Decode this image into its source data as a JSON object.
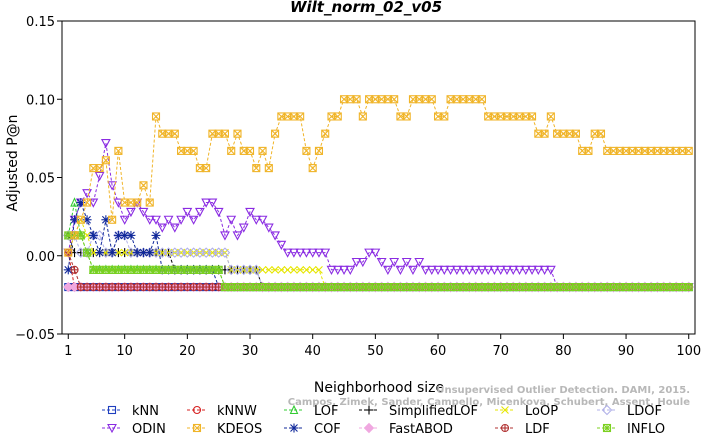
{
  "watermark": {
    "line1": "Unsupervised Outlier Detection. DAMI, 2015.",
    "line2": "Campos, Zimek, Sander, Campello, Micenkova, Schubert, Assent, Houle"
  },
  "chart_data": {
    "type": "line",
    "title": "Wilt_norm_02_v05",
    "xlabel": "Neighborhood size",
    "ylabel": "Adjusted P@n",
    "xlim": [
      0,
      101
    ],
    "ylim": [
      -0.05,
      0.15
    ],
    "xticks": [
      1,
      10,
      20,
      30,
      40,
      50,
      60,
      70,
      80,
      90,
      100
    ],
    "yticks": [
      -0.05,
      0.0,
      0.05,
      0.1,
      0.15
    ],
    "ytick_labels": [
      "−0.05",
      "0.00",
      "0.05",
      "0.10",
      "0.15"
    ],
    "grid": false,
    "legend_position": "bottom",
    "series": [
      {
        "name": "kNN",
        "color": "#1f3fbf",
        "marker": "square",
        "points": [
          [
            1,
            -0.02
          ],
          [
            100,
            -0.02
          ]
        ]
      },
      {
        "name": "kNNW",
        "color": "#d62020",
        "marker": "circle",
        "points": [
          [
            1,
            0.002
          ],
          [
            2,
            -0.02
          ],
          [
            100,
            -0.02
          ]
        ]
      },
      {
        "name": "LOF",
        "color": "#33cc33",
        "marker": "triangle",
        "points": [
          [
            1,
            0.013
          ],
          [
            2,
            0.034
          ],
          [
            3,
            0.013
          ],
          [
            4,
            0.002
          ],
          [
            5,
            -0.009
          ],
          [
            25,
            -0.009
          ],
          [
            26,
            -0.02
          ],
          [
            100,
            -0.02
          ]
        ]
      },
      {
        "name": "SimplifiedLOF",
        "color": "#000000",
        "marker": "plus",
        "points": [
          [
            1,
            0.013
          ],
          [
            2,
            0.002
          ],
          [
            17,
            0.002
          ],
          [
            18,
            -0.009
          ],
          [
            31,
            -0.009
          ],
          [
            32,
            -0.02
          ],
          [
            100,
            -0.02
          ]
        ]
      },
      {
        "name": "LoOP",
        "color": "#e6e600",
        "marker": "x",
        "points": [
          [
            1,
            0.002
          ],
          [
            2,
            0.013
          ],
          [
            3,
            0.023
          ],
          [
            4,
            0.013
          ],
          [
            5,
            0.002
          ],
          [
            26,
            0.002
          ],
          [
            27,
            -0.009
          ],
          [
            41,
            -0.009
          ],
          [
            42,
            -0.02
          ],
          [
            100,
            -0.02
          ]
        ]
      },
      {
        "name": "LDOF",
        "color": "#b0b0e8",
        "marker": "diamond",
        "points": [
          [
            1,
            0.013
          ],
          [
            3,
            0.002
          ],
          [
            5,
            0.013
          ],
          [
            7,
            0.002
          ],
          [
            9,
            0.013
          ],
          [
            11,
            0.002
          ],
          [
            15,
            0.002
          ],
          [
            17,
            0.002
          ],
          [
            26,
            0.002
          ],
          [
            27,
            -0.009
          ],
          [
            31,
            -0.009
          ],
          [
            32,
            -0.02
          ],
          [
            100,
            -0.02
          ]
        ]
      },
      {
        "name": "ODIN",
        "color": "#8a2be2",
        "marker": "triangle-down",
        "points": [
          [
            1,
            0.002
          ],
          [
            2,
            0.023
          ],
          [
            3,
            0.034
          ],
          [
            4,
            0.04
          ],
          [
            5,
            0.034
          ],
          [
            6,
            0.051
          ],
          [
            7,
            0.072
          ],
          [
            8,
            0.045
          ],
          [
            9,
            0.034
          ],
          [
            10,
            0.023
          ],
          [
            11,
            0.028
          ],
          [
            12,
            0.034
          ],
          [
            13,
            0.028
          ],
          [
            14,
            0.023
          ],
          [
            15,
            0.023
          ],
          [
            16,
            0.018
          ],
          [
            17,
            0.023
          ],
          [
            18,
            0.018
          ],
          [
            19,
            0.023
          ],
          [
            20,
            0.028
          ],
          [
            21,
            0.023
          ],
          [
            22,
            0.028
          ],
          [
            23,
            0.034
          ],
          [
            24,
            0.034
          ],
          [
            25,
            0.028
          ],
          [
            26,
            0.013
          ],
          [
            27,
            0.023
          ],
          [
            28,
            0.013
          ],
          [
            29,
            0.018
          ],
          [
            30,
            0.028
          ],
          [
            31,
            0.023
          ],
          [
            32,
            0.023
          ],
          [
            33,
            0.018
          ],
          [
            34,
            0.013
          ],
          [
            35,
            0.007
          ],
          [
            36,
            0.002
          ],
          [
            42,
            0.002
          ],
          [
            43,
            -0.009
          ],
          [
            46,
            -0.009
          ],
          [
            47,
            -0.004
          ],
          [
            48,
            -0.004
          ],
          [
            49,
            0.002
          ],
          [
            50,
            0.002
          ],
          [
            51,
            -0.004
          ],
          [
            52,
            -0.009
          ],
          [
            53,
            -0.004
          ],
          [
            54,
            -0.009
          ],
          [
            55,
            -0.004
          ],
          [
            56,
            -0.009
          ],
          [
            57,
            -0.004
          ],
          [
            58,
            -0.009
          ],
          [
            78,
            -0.009
          ],
          [
            79,
            -0.02
          ],
          [
            100,
            -0.02
          ]
        ]
      },
      {
        "name": "KDEOS",
        "color": "#f0b428",
        "marker": "square-x",
        "points": [
          [
            1,
            0.002
          ],
          [
            2,
            0.013
          ],
          [
            3,
            0.023
          ],
          [
            4,
            0.034
          ],
          [
            5,
            0.056
          ],
          [
            6,
            0.056
          ],
          [
            7,
            0.061
          ],
          [
            8,
            0.023
          ],
          [
            9,
            0.067
          ],
          [
            10,
            0.034
          ],
          [
            12,
            0.034
          ],
          [
            13,
            0.045
          ],
          [
            14,
            0.034
          ],
          [
            15,
            0.089
          ],
          [
            16,
            0.078
          ],
          [
            18,
            0.078
          ],
          [
            19,
            0.067
          ],
          [
            21,
            0.067
          ],
          [
            22,
            0.056
          ],
          [
            23,
            0.056
          ],
          [
            24,
            0.078
          ],
          [
            26,
            0.078
          ],
          [
            27,
            0.067
          ],
          [
            28,
            0.078
          ],
          [
            29,
            0.067
          ],
          [
            30,
            0.067
          ],
          [
            31,
            0.056
          ],
          [
            32,
            0.067
          ],
          [
            33,
            0.056
          ],
          [
            34,
            0.078
          ],
          [
            35,
            0.089
          ],
          [
            38,
            0.089
          ],
          [
            39,
            0.067
          ],
          [
            40,
            0.056
          ],
          [
            41,
            0.067
          ],
          [
            42,
            0.078
          ],
          [
            43,
            0.089
          ],
          [
            44,
            0.089
          ],
          [
            45,
            0.1
          ],
          [
            47,
            0.1
          ],
          [
            48,
            0.089
          ],
          [
            49,
            0.1
          ],
          [
            53,
            0.1
          ],
          [
            54,
            0.089
          ],
          [
            55,
            0.089
          ],
          [
            56,
            0.1
          ],
          [
            59,
            0.1
          ],
          [
            60,
            0.089
          ],
          [
            61,
            0.089
          ],
          [
            62,
            0.1
          ],
          [
            67,
            0.1
          ],
          [
            68,
            0.089
          ],
          [
            75,
            0.089
          ],
          [
            76,
            0.078
          ],
          [
            77,
            0.078
          ],
          [
            78,
            0.089
          ],
          [
            79,
            0.078
          ],
          [
            82,
            0.078
          ],
          [
            83,
            0.067
          ],
          [
            84,
            0.067
          ],
          [
            85,
            0.078
          ],
          [
            86,
            0.078
          ],
          [
            87,
            0.067
          ],
          [
            100,
            0.067
          ]
        ]
      },
      {
        "name": "COF",
        "color": "#10289a",
        "marker": "star",
        "points": [
          [
            1,
            -0.009
          ],
          [
            2,
            0.023
          ],
          [
            3,
            0.034
          ],
          [
            4,
            0.023
          ],
          [
            5,
            0.013
          ],
          [
            6,
            0.002
          ],
          [
            7,
            0.023
          ],
          [
            8,
            0.002
          ],
          [
            9,
            0.013
          ],
          [
            10,
            0.013
          ],
          [
            11,
            0.013
          ],
          [
            12,
            0.002
          ],
          [
            14,
            0.002
          ],
          [
            15,
            0.013
          ],
          [
            16,
            -0.009
          ],
          [
            24,
            -0.009
          ],
          [
            25,
            -0.02
          ],
          [
            100,
            -0.02
          ]
        ]
      },
      {
        "name": "FastABOD",
        "color": "#f0a8e0",
        "marker": "diamond-filled",
        "points": [
          [
            1,
            -0.02
          ],
          [
            100,
            -0.02
          ]
        ]
      },
      {
        "name": "LDF",
        "color": "#b03030",
        "marker": "circle-plus",
        "points": [
          [
            1,
            0.002
          ],
          [
            2,
            -0.009
          ],
          [
            3,
            -0.02
          ],
          [
            100,
            -0.02
          ]
        ]
      },
      {
        "name": "INFLO",
        "color": "#7cd020",
        "marker": "square-star",
        "points": [
          [
            1,
            0.013
          ],
          [
            2,
            0.013
          ],
          [
            3,
            0.013
          ],
          [
            4,
            0.002
          ],
          [
            5,
            -0.009
          ],
          [
            25,
            -0.009
          ],
          [
            26,
            -0.02
          ],
          [
            100,
            -0.02
          ]
        ]
      }
    ]
  }
}
